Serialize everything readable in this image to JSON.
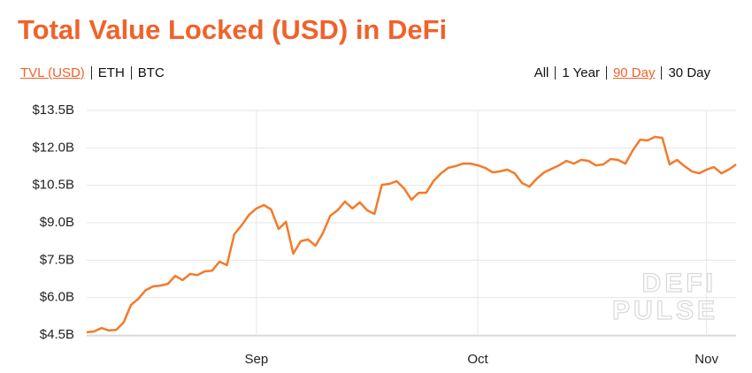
{
  "title": "Total Value Locked (USD) in DeFi",
  "metric_tabs": [
    "TVL (USD)",
    "ETH",
    "BTC"
  ],
  "active_metric": 0,
  "range_tabs": [
    "All",
    "1 Year",
    "90 Day",
    "30 Day"
  ],
  "active_range": 2,
  "watermark": [
    "DEFI",
    "PULSE"
  ],
  "chart_data": {
    "type": "line",
    "color": "#f47a2a",
    "grid": true,
    "categories": [
      null,
      null,
      null,
      null,
      null,
      null,
      null,
      null,
      null,
      null,
      null,
      null,
      null,
      null,
      null,
      null,
      null,
      null,
      null,
      null,
      null,
      null,
      null,
      "Sep",
      null,
      null,
      null,
      null,
      null,
      null,
      null,
      null,
      null,
      null,
      null,
      null,
      null,
      null,
      null,
      null,
      null,
      null,
      null,
      null,
      null,
      null,
      null,
      null,
      null,
      null,
      null,
      null,
      null,
      "Oct",
      null,
      null,
      null,
      null,
      null,
      null,
      null,
      null,
      null,
      null,
      null,
      null,
      null,
      null,
      null,
      null,
      null,
      null,
      null,
      null,
      null,
      null,
      null,
      null,
      null,
      null,
      null,
      null,
      null,
      null,
      "Nov",
      null,
      null,
      null,
      null
    ],
    "values": [
      4.61,
      4.64,
      4.78,
      4.68,
      4.71,
      5.0,
      5.7,
      5.95,
      6.3,
      6.45,
      6.48,
      6.55,
      6.87,
      6.7,
      6.95,
      6.9,
      7.05,
      7.08,
      7.44,
      7.3,
      8.54,
      8.9,
      9.32,
      9.57,
      9.71,
      9.53,
      8.75,
      9.04,
      7.76,
      8.26,
      8.33,
      8.08,
      8.58,
      9.28,
      9.5,
      9.85,
      9.57,
      9.82,
      9.5,
      9.35,
      10.52,
      10.56,
      10.67,
      10.38,
      9.92,
      10.2,
      10.2,
      10.67,
      10.98,
      11.2,
      11.27,
      11.37,
      11.37,
      11.3,
      11.2,
      11.02,
      11.06,
      11.13,
      10.98,
      10.59,
      10.45,
      10.77,
      11.02,
      11.16,
      11.3,
      11.48,
      11.37,
      11.52,
      11.48,
      11.3,
      11.34,
      11.55,
      11.52,
      11.37,
      11.9,
      12.33,
      12.3,
      12.44,
      12.4,
      11.34,
      11.52,
      11.27,
      11.06,
      10.98,
      11.13,
      11.23,
      10.98,
      11.13,
      11.34
    ],
    "ylim": [
      4.5,
      13.5
    ],
    "yticks": [
      {
        "value": 4.5,
        "label": "$4.5B"
      },
      {
        "value": 6.0,
        "label": "$6.0B"
      },
      {
        "value": 7.5,
        "label": "$7.5B"
      },
      {
        "value": 9.0,
        "label": "$9.0B"
      },
      {
        "value": 10.5,
        "label": "$10.5B"
      },
      {
        "value": 12.0,
        "label": "$12.0B"
      },
      {
        "value": 13.5,
        "label": "$13.5B"
      }
    ]
  }
}
